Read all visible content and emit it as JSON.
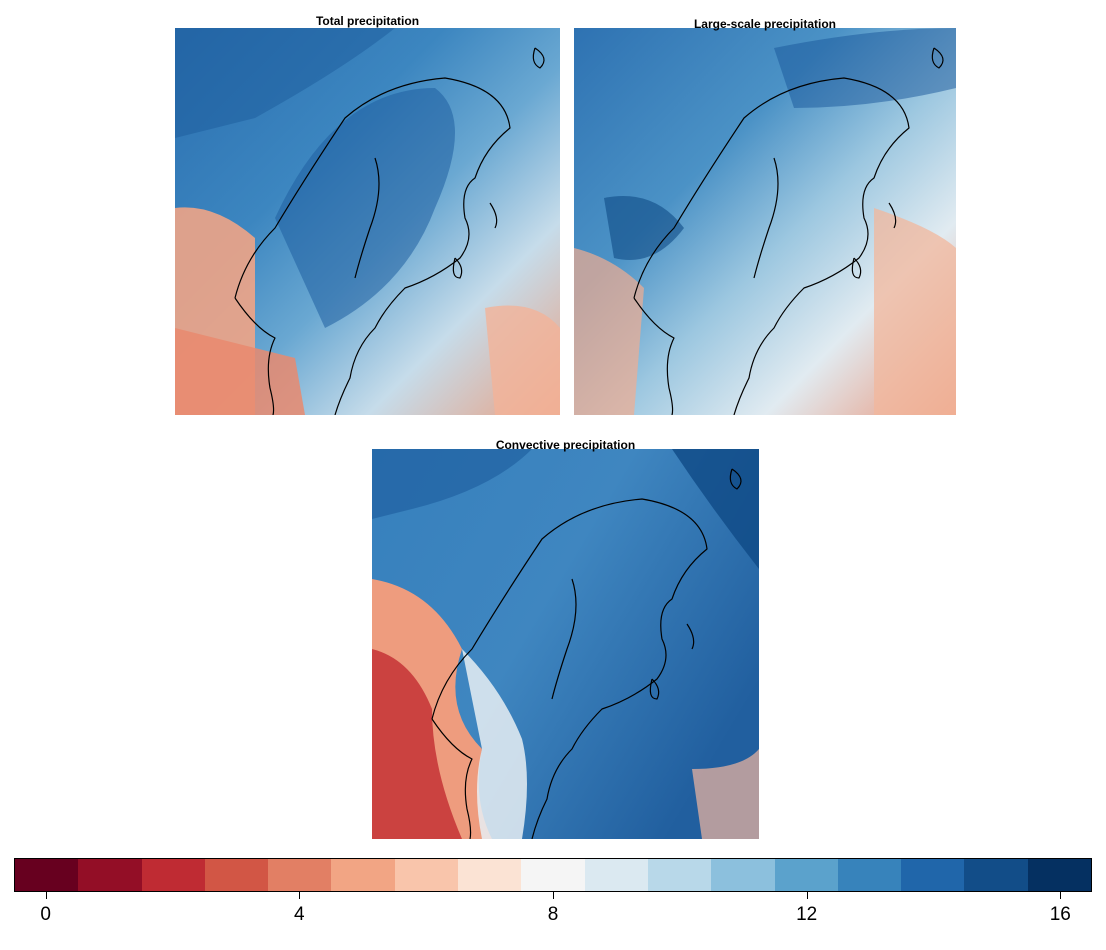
{
  "panels": [
    {
      "title": "Total precipitation"
    },
    {
      "title": "Large-scale precipitation"
    },
    {
      "title": "Convective precipitation"
    }
  ],
  "colorbar": {
    "min": 0,
    "max": 17,
    "segments": 17,
    "tick_labels": [
      "0",
      "4",
      "8",
      "12",
      "16"
    ],
    "tick_values": [
      0,
      4,
      8,
      12,
      16
    ],
    "colors": [
      "#67001f",
      "#930e26",
      "#bf2b33",
      "#d25645",
      "#e27f64",
      "#f2a584",
      "#f9c5ab",
      "#fbe3d4",
      "#f5f5f5",
      "#dbe9f1",
      "#b8d8e9",
      "#8cc0dd",
      "#5ba2cc",
      "#3783bb",
      "#2066aa",
      "#124d88",
      "#053061"
    ]
  }
}
